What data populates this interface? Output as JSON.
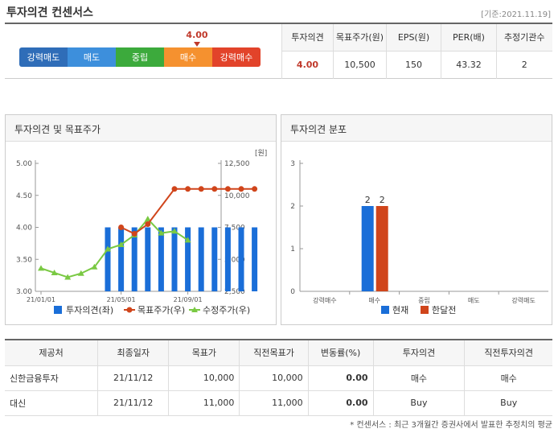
{
  "header": {
    "title": "투자의견 컨센서스",
    "date": "[기준:2021.11.19]"
  },
  "scale": {
    "marker_value": "4.00",
    "segments": [
      {
        "label": "강력매도",
        "color": "#2f6db8"
      },
      {
        "label": "매도",
        "color": "#3d8fdc"
      },
      {
        "label": "중립",
        "color": "#3caa3c"
      },
      {
        "label": "매수",
        "color": "#f5912f"
      },
      {
        "label": "강력매수",
        "color": "#e2432a"
      }
    ]
  },
  "summary": {
    "headers": [
      "투자의견",
      "목표주가(원)",
      "EPS(원)",
      "PER(배)",
      "추정기관수"
    ],
    "values": [
      "4.00",
      "10,500",
      "150",
      "43.32",
      "2"
    ]
  },
  "panels": {
    "left_title": "투자의견 및 목표주가",
    "right_title": "투자의견 분포"
  },
  "chart_data": [
    {
      "type": "bar",
      "title": "투자의견 및 목표주가",
      "x_ticks": [
        "21/01/01",
        "21/05/01",
        "21/09/01"
      ],
      "y_left_ticks": [
        "5.00",
        "4.50",
        "4.00",
        "3.50",
        "3.00"
      ],
      "y_left_range": [
        3.0,
        5.0
      ],
      "y_right_unit": "[원]",
      "y_right_ticks": [
        "12,500",
        "10,000",
        "7,500",
        "5,000",
        "2,500"
      ],
      "y_right_range": [
        2500,
        12500
      ],
      "legend": [
        "투자의견(좌)",
        "목표주가(우)",
        "수정주가(우)"
      ],
      "series": [
        {
          "name": "투자의견(좌)",
          "color": "#1a6ed8",
          "values": [
            null,
            null,
            null,
            null,
            null,
            4.0,
            4.0,
            4.0,
            4.0,
            4.0,
            4.0,
            4.0,
            4.0,
            4.0,
            4.0,
            4.0,
            4.0
          ]
        },
        {
          "name": "목표주가(우)",
          "color": "#d0451b",
          "values": [
            null,
            null,
            null,
            null,
            null,
            null,
            7500,
            7000,
            7750,
            null,
            10500,
            10500,
            10500,
            10500,
            10500,
            10500,
            10500
          ]
        },
        {
          "name": "수정주가(우)",
          "color": "#7ac943",
          "values": [
            4300,
            3950,
            3600,
            3900,
            4400,
            5800,
            6150,
            6900,
            8150,
            7050,
            7200,
            6500
          ]
        }
      ]
    },
    {
      "type": "bar",
      "title": "투자의견 분포",
      "categories": [
        "강력매수",
        "매수",
        "중립",
        "매도",
        "강력매도"
      ],
      "y_ticks": [
        "3",
        "2",
        "1",
        "0"
      ],
      "ylim": [
        0,
        3
      ],
      "series": [
        {
          "name": "현재",
          "color": "#1a6ed8",
          "values": [
            0,
            2,
            0,
            0,
            0
          ]
        },
        {
          "name": "한달전",
          "color": "#d0451b",
          "values": [
            0,
            2,
            0,
            0,
            0
          ]
        }
      ]
    }
  ],
  "providers": {
    "headers": [
      "제공처",
      "최종일자",
      "목표가",
      "직전목표가",
      "변동률(%)",
      "투자의견",
      "직전투자의견"
    ],
    "rows": [
      [
        "신한금융투자",
        "21/11/12",
        "10,000",
        "10,000",
        "0.00",
        "매수",
        "매수"
      ],
      [
        "대신",
        "21/11/12",
        "11,000",
        "11,000",
        "0.00",
        "Buy",
        "Buy"
      ]
    ]
  },
  "footnote": "* 컨센서스 : 최근 3개월간 증권사에서 발표한 추정치의 평균"
}
